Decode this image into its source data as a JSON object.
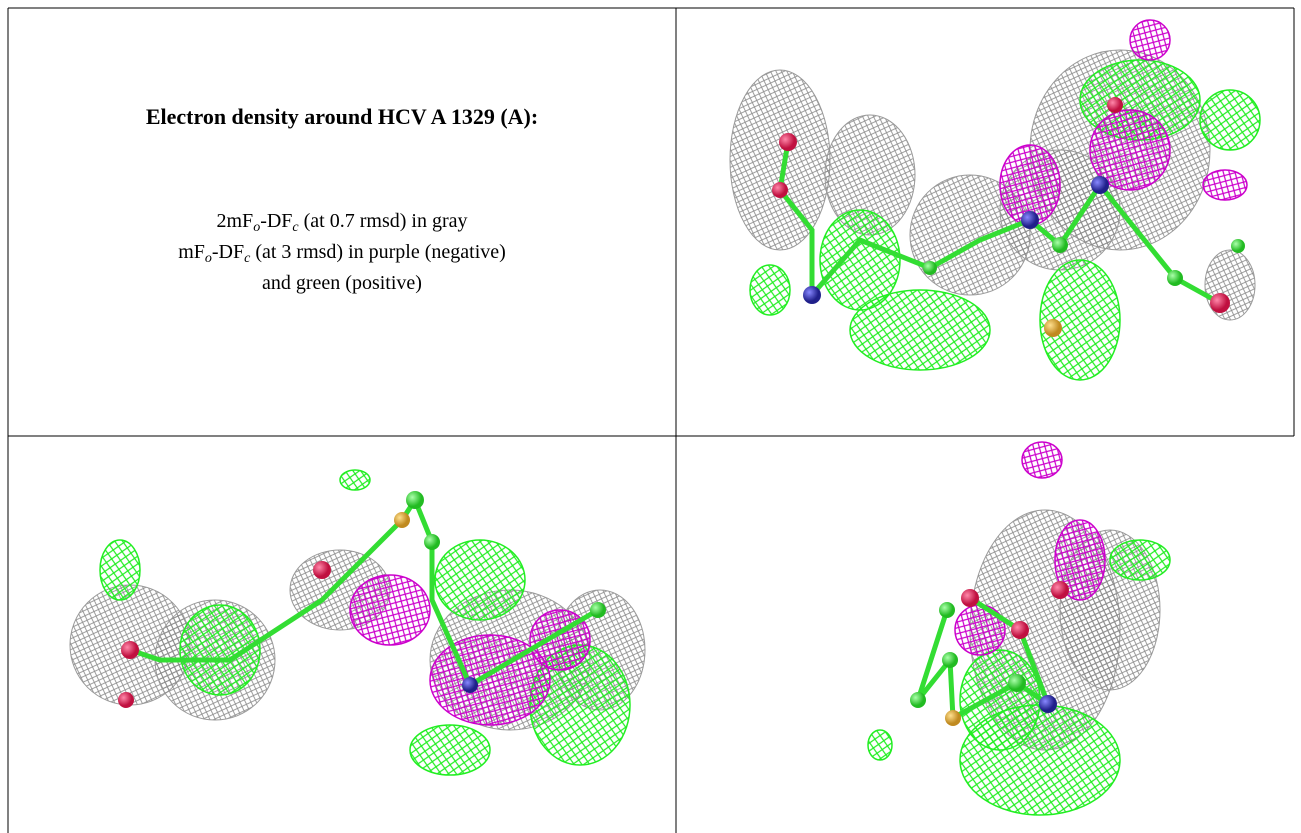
{
  "panel_title": "Electron density around HCV A 1329 (A):",
  "legend_lines": [
    [
      {
        "text": "2mF"
      },
      {
        "sub": "o"
      },
      {
        "text": "-DF"
      },
      {
        "sub": "c"
      },
      {
        "text": " (at 0.7 rmsd) in gray"
      }
    ],
    [
      {
        "text": "mF"
      },
      {
        "sub": "o"
      },
      {
        "text": "-DF"
      },
      {
        "sub": "c"
      },
      {
        "text": " (at 3 rmsd) in purple (negative)"
      }
    ],
    [
      {
        "text": "and green (positive)"
      }
    ]
  ]
}
